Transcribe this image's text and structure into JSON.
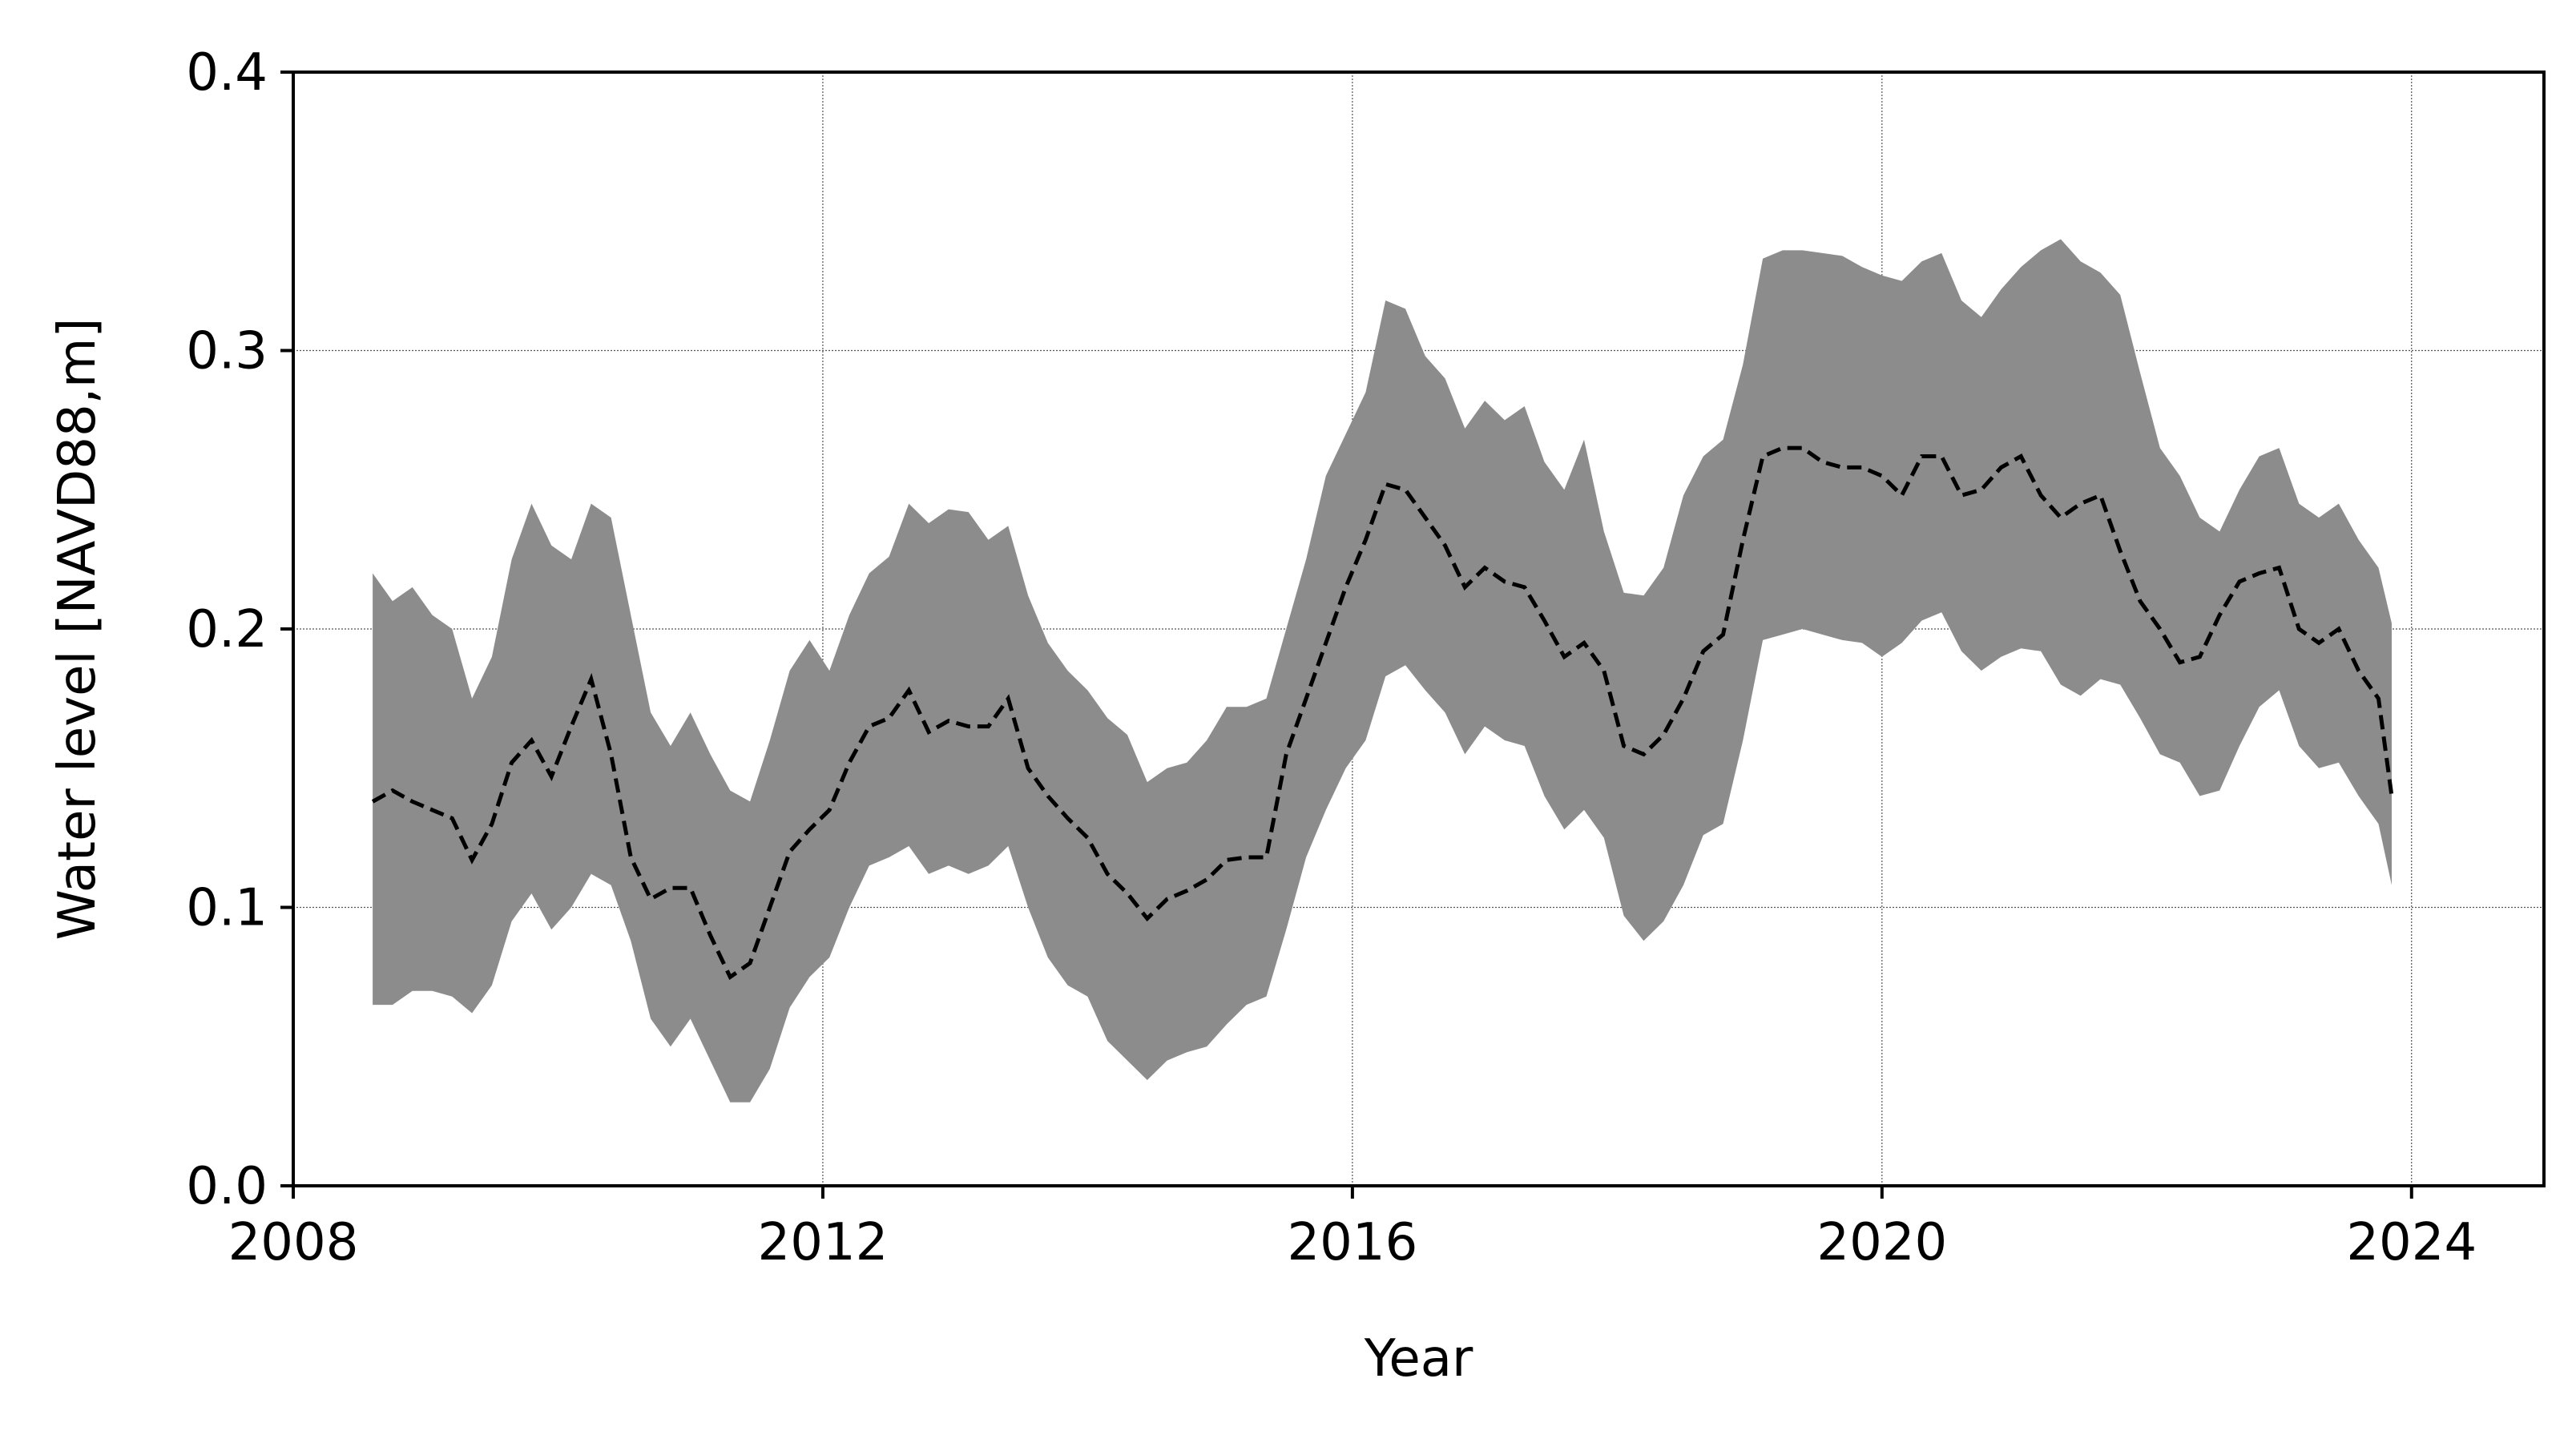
{
  "chart_data": {
    "type": "area",
    "xlabel": "Year",
    "ylabel": "Water level [NAVD88,m]",
    "xlim": [
      2008,
      2025
    ],
    "ylim": [
      0,
      0.4
    ],
    "xticks": [
      2008,
      2012,
      2016,
      2020,
      2024
    ],
    "xtick_labels": [
      "2008",
      "2012",
      "2016",
      "2020",
      "2024"
    ],
    "yticks": [
      0.0,
      0.1,
      0.2,
      0.3,
      0.4
    ],
    "ytick_labels": [
      "0.0",
      "0.1",
      "0.2",
      "0.3",
      "0.4"
    ],
    "grid": true,
    "colors": {
      "band": "#8c8c8c",
      "line": "#000000",
      "grid": "#555555"
    },
    "series": [
      {
        "style": "dashed line",
        "x": [
          2008.6,
          2008.75,
          2008.9,
          2009.05,
          2009.2,
          2009.35,
          2009.5,
          2009.65,
          2009.8,
          2009.95,
          2010.1,
          2010.25,
          2010.4,
          2010.55,
          2010.7,
          2010.85,
          2011.0,
          2011.15,
          2011.3,
          2011.45,
          2011.6,
          2011.75,
          2011.9,
          2012.05,
          2012.2,
          2012.35,
          2012.5,
          2012.65,
          2012.8,
          2012.95,
          2013.1,
          2013.25,
          2013.4,
          2013.55,
          2013.7,
          2013.85,
          2014.0,
          2014.15,
          2014.3,
          2014.45,
          2014.6,
          2014.75,
          2014.9,
          2015.05,
          2015.2,
          2015.35,
          2015.5,
          2015.65,
          2015.8,
          2015.95,
          2016.1,
          2016.25,
          2016.4,
          2016.55,
          2016.7,
          2016.85,
          2017.0,
          2017.15,
          2017.3,
          2017.45,
          2017.6,
          2017.75,
          2017.9,
          2018.05,
          2018.2,
          2018.35,
          2018.5,
          2018.65,
          2018.8,
          2018.95,
          2019.1,
          2019.25,
          2019.4,
          2019.55,
          2019.7,
          2019.85,
          2020.0,
          2020.15,
          2020.3,
          2020.45,
          2020.6,
          2020.75,
          2020.9,
          2021.05,
          2021.2,
          2021.35,
          2021.5,
          2021.65,
          2021.8,
          2021.95,
          2022.1,
          2022.25,
          2022.4,
          2022.55,
          2022.7,
          2022.85,
          2023.0,
          2023.15,
          2023.3,
          2023.45,
          2023.6,
          2023.75,
          2023.85
        ],
        "values": [
          0.138,
          0.142,
          0.138,
          0.135,
          0.132,
          0.117,
          0.13,
          0.152,
          0.16,
          0.147,
          0.165,
          0.182,
          0.155,
          0.118,
          0.103,
          0.107,
          0.107,
          0.09,
          0.075,
          0.08,
          0.1,
          0.12,
          0.128,
          0.135,
          0.152,
          0.165,
          0.168,
          0.178,
          0.163,
          0.167,
          0.165,
          0.165,
          0.175,
          0.15,
          0.14,
          0.132,
          0.125,
          0.112,
          0.105,
          0.096,
          0.103,
          0.106,
          0.11,
          0.117,
          0.118,
          0.118,
          0.155,
          0.175,
          0.195,
          0.215,
          0.232,
          0.252,
          0.25,
          0.24,
          0.23,
          0.215,
          0.222,
          0.217,
          0.215,
          0.203,
          0.19,
          0.195,
          0.185,
          0.158,
          0.155,
          0.162,
          0.175,
          0.192,
          0.198,
          0.232,
          0.262,
          0.265,
          0.265,
          0.26,
          0.258,
          0.258,
          0.255,
          0.248,
          0.262,
          0.262,
          0.248,
          0.25,
          0.258,
          0.262,
          0.248,
          0.24,
          0.245,
          0.248,
          0.228,
          0.21,
          0.2,
          0.188,
          0.19,
          0.205,
          0.217,
          0.22,
          0.222,
          0.2,
          0.195,
          0.2,
          0.185,
          0.175,
          0.14
        ]
      }
    ],
    "band": {
      "x": [
        2008.6,
        2008.75,
        2008.9,
        2009.05,
        2009.2,
        2009.35,
        2009.5,
        2009.65,
        2009.8,
        2009.95,
        2010.1,
        2010.25,
        2010.4,
        2010.55,
        2010.7,
        2010.85,
        2011.0,
        2011.15,
        2011.3,
        2011.45,
        2011.6,
        2011.75,
        2011.9,
        2012.05,
        2012.2,
        2012.35,
        2012.5,
        2012.65,
        2012.8,
        2012.95,
        2013.1,
        2013.25,
        2013.4,
        2013.55,
        2013.7,
        2013.85,
        2014.0,
        2014.15,
        2014.3,
        2014.45,
        2014.6,
        2014.75,
        2014.9,
        2015.05,
        2015.2,
        2015.35,
        2015.5,
        2015.65,
        2015.8,
        2015.95,
        2016.1,
        2016.25,
        2016.4,
        2016.55,
        2016.7,
        2016.85,
        2017.0,
        2017.15,
        2017.3,
        2017.45,
        2017.6,
        2017.75,
        2017.9,
        2018.05,
        2018.2,
        2018.35,
        2018.5,
        2018.65,
        2018.8,
        2018.95,
        2019.1,
        2019.25,
        2019.4,
        2019.55,
        2019.7,
        2019.85,
        2020.0,
        2020.15,
        2020.3,
        2020.45,
        2020.6,
        2020.75,
        2020.9,
        2021.05,
        2021.2,
        2021.35,
        2021.5,
        2021.65,
        2021.8,
        2021.95,
        2022.1,
        2022.25,
        2022.4,
        2022.55,
        2022.7,
        2022.85,
        2023.0,
        2023.15,
        2023.3,
        2023.45,
        2023.6,
        2023.75,
        2023.85
      ],
      "upper": [
        0.22,
        0.21,
        0.215,
        0.205,
        0.2,
        0.175,
        0.19,
        0.225,
        0.245,
        0.23,
        0.225,
        0.245,
        0.24,
        0.205,
        0.17,
        0.158,
        0.17,
        0.155,
        0.142,
        0.138,
        0.16,
        0.185,
        0.196,
        0.185,
        0.205,
        0.22,
        0.226,
        0.245,
        0.238,
        0.243,
        0.242,
        0.232,
        0.237,
        0.212,
        0.195,
        0.185,
        0.178,
        0.168,
        0.162,
        0.145,
        0.15,
        0.152,
        0.16,
        0.172,
        0.172,
        0.175,
        0.2,
        0.225,
        0.255,
        0.27,
        0.285,
        0.318,
        0.315,
        0.298,
        0.29,
        0.272,
        0.282,
        0.275,
        0.28,
        0.26,
        0.25,
        0.268,
        0.235,
        0.213,
        0.212,
        0.222,
        0.248,
        0.262,
        0.268,
        0.295,
        0.333,
        0.336,
        0.336,
        0.335,
        0.334,
        0.33,
        0.327,
        0.325,
        0.332,
        0.335,
        0.318,
        0.312,
        0.322,
        0.33,
        0.336,
        0.34,
        0.332,
        0.328,
        0.32,
        0.292,
        0.265,
        0.255,
        0.24,
        0.235,
        0.25,
        0.262,
        0.265,
        0.245,
        0.24,
        0.245,
        0.232,
        0.222,
        0.202
      ],
      "lower": [
        0.065,
        0.065,
        0.07,
        0.07,
        0.068,
        0.062,
        0.072,
        0.095,
        0.105,
        0.092,
        0.1,
        0.112,
        0.108,
        0.088,
        0.06,
        0.05,
        0.06,
        0.045,
        0.03,
        0.03,
        0.042,
        0.064,
        0.075,
        0.082,
        0.1,
        0.115,
        0.118,
        0.122,
        0.112,
        0.115,
        0.112,
        0.115,
        0.122,
        0.1,
        0.082,
        0.072,
        0.068,
        0.052,
        0.045,
        0.038,
        0.045,
        0.048,
        0.05,
        0.058,
        0.065,
        0.068,
        0.092,
        0.118,
        0.135,
        0.15,
        0.16,
        0.183,
        0.187,
        0.178,
        0.17,
        0.155,
        0.165,
        0.16,
        0.158,
        0.14,
        0.128,
        0.135,
        0.125,
        0.097,
        0.088,
        0.095,
        0.108,
        0.126,
        0.13,
        0.16,
        0.196,
        0.198,
        0.2,
        0.198,
        0.196,
        0.195,
        0.19,
        0.195,
        0.203,
        0.206,
        0.192,
        0.185,
        0.19,
        0.193,
        0.192,
        0.18,
        0.176,
        0.182,
        0.18,
        0.168,
        0.155,
        0.152,
        0.14,
        0.142,
        0.158,
        0.172,
        0.178,
        0.158,
        0.15,
        0.152,
        0.14,
        0.13,
        0.108
      ]
    }
  }
}
